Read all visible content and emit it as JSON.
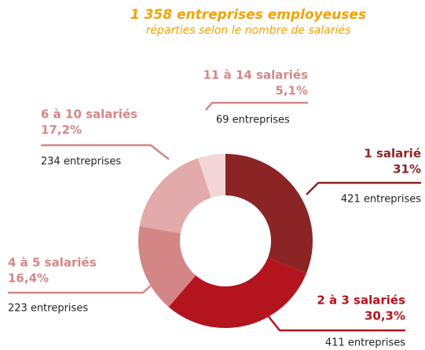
{
  "chart_data": {
    "type": "donut",
    "title": "1 358 entreprises employeuses",
    "subtitle": "réparties selon le nombre de salariés",
    "categories": [
      "1 salarié",
      "2 à 3 salariés",
      "4 à 5 salariés",
      "6 à 10 salariés",
      "11 à 14 salariés"
    ],
    "values": [
      31,
      30.3,
      16.4,
      17.2,
      5.1
    ],
    "value_labels": [
      "31%",
      "30,3%",
      "16,4%",
      "17,2%",
      "5,1%"
    ],
    "count_labels": [
      "421 entreprises",
      "411 entreprises",
      "223 entreprises",
      "234 entreprises",
      "69 entreprises"
    ],
    "colors": [
      "#8b2424",
      "#b3141d",
      "#d48686",
      "#e2aaaa",
      "#f3d5d5"
    ]
  }
}
